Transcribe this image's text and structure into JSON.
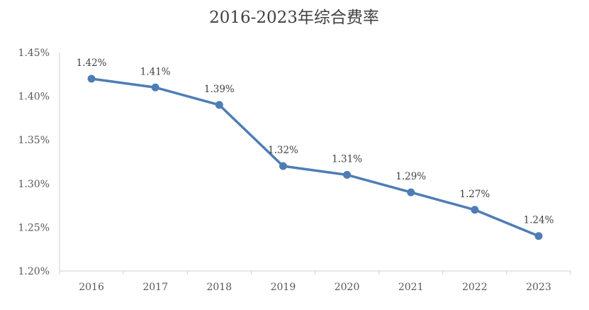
{
  "chart_data": {
    "type": "line",
    "title": "2016-2023年综合费率",
    "categories": [
      "2016",
      "2017",
      "2018",
      "2019",
      "2020",
      "2021",
      "2022",
      "2023"
    ],
    "series": [
      {
        "values": [
          1.42,
          1.41,
          1.39,
          1.32,
          1.31,
          1.29,
          1.27,
          1.24
        ]
      }
    ],
    "value_labels": [
      "1.42%",
      "1.41%",
      "1.39%",
      "1.32%",
      "1.31%",
      "1.29%",
      "1.27%",
      "1.24%"
    ],
    "y_ticks": [
      "1.20%",
      "1.25%",
      "1.30%",
      "1.35%",
      "1.40%",
      "1.45%"
    ],
    "ylim": [
      1.2,
      1.45
    ],
    "grid": false,
    "legend": "none",
    "colors": {
      "line": "#4E7DB5",
      "axis": "#D0D0D0"
    }
  }
}
